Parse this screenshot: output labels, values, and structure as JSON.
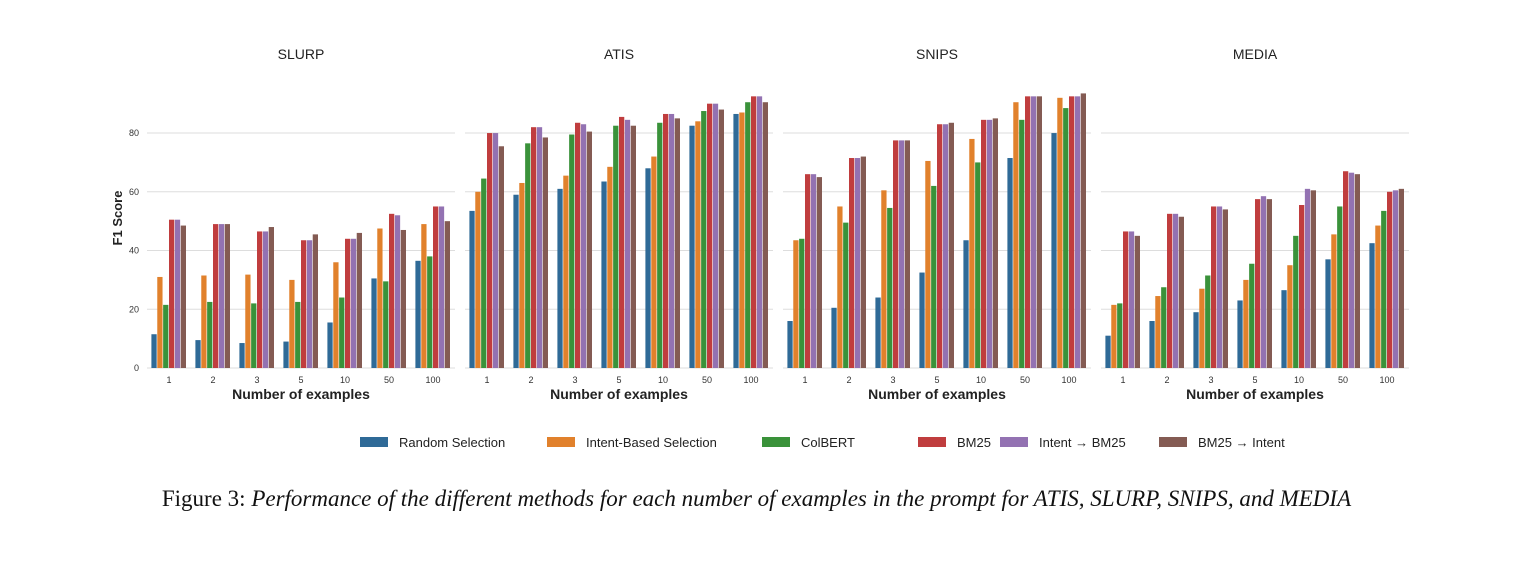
{
  "caption": {
    "label": "Figure 3:",
    "text": "Performance of the different methods for each number of examples in the prompt for ATIS, SLURP, SNIPS, and MEDIA"
  },
  "chart_data": {
    "type": "bar",
    "ylabel": "F1 Score",
    "xlabel": "Number of examples",
    "ylim": [
      0,
      95
    ],
    "yticks": [
      0,
      20,
      40,
      60,
      80
    ],
    "grid": true,
    "legend_position": "bottom",
    "categories": [
      "1",
      "2",
      "3",
      "5",
      "10",
      "50",
      "100"
    ],
    "series_names": [
      "Random Selection",
      "Intent-Based Selection",
      "ColBERT",
      "BM25",
      "Intent → BM25",
      "BM25 → Intent"
    ],
    "colors": [
      "#2f6a97",
      "#e1812c",
      "#3a923a",
      "#c03d3e",
      "#9372b2",
      "#845b53"
    ],
    "panels": [
      {
        "title": "SLURP",
        "values": [
          [
            11.5,
            9.5,
            8.5,
            9.0,
            15.5,
            30.5,
            36.5
          ],
          [
            31.0,
            31.5,
            31.8,
            30.0,
            36.0,
            47.5,
            49.0
          ],
          [
            21.5,
            22.5,
            22.0,
            22.5,
            24.0,
            29.5,
            38.0
          ],
          [
            50.5,
            49.0,
            46.5,
            43.5,
            44.0,
            52.5,
            55.0
          ],
          [
            50.5,
            49.0,
            46.5,
            43.5,
            44.0,
            52.0,
            55.0
          ],
          [
            48.5,
            49.0,
            48.0,
            45.5,
            46.0,
            47.0,
            50.0
          ]
        ]
      },
      {
        "title": "ATIS",
        "values": [
          [
            53.5,
            59.0,
            61.0,
            63.5,
            68.0,
            82.5,
            86.5
          ],
          [
            60.0,
            63.0,
            65.5,
            68.5,
            72.0,
            84.0,
            87.0
          ],
          [
            64.5,
            76.5,
            79.5,
            82.5,
            83.5,
            87.5,
            90.5
          ],
          [
            80.0,
            82.0,
            83.5,
            85.5,
            86.5,
            90.0,
            92.5
          ],
          [
            80.0,
            82.0,
            83.0,
            84.5,
            86.5,
            90.0,
            92.5
          ],
          [
            75.5,
            78.5,
            80.5,
            82.5,
            85.0,
            88.0,
            90.5
          ]
        ]
      },
      {
        "title": "SNIPS",
        "values": [
          [
            16.0,
            20.5,
            24.0,
            32.5,
            43.5,
            71.5,
            80.0
          ],
          [
            43.5,
            55.0,
            60.5,
            70.5,
            78.0,
            90.5,
            92.0
          ],
          [
            44.0,
            49.5,
            54.5,
            62.0,
            70.0,
            84.5,
            88.5
          ],
          [
            66.0,
            71.5,
            77.5,
            83.0,
            84.5,
            92.5,
            92.5
          ],
          [
            66.0,
            71.5,
            77.5,
            83.0,
            84.5,
            92.5,
            92.5
          ],
          [
            65.0,
            72.0,
            77.5,
            83.5,
            85.0,
            92.5,
            93.5
          ]
        ]
      },
      {
        "title": "MEDIA",
        "values": [
          [
            11.0,
            16.0,
            19.0,
            23.0,
            26.5,
            37.0,
            42.5
          ],
          [
            21.5,
            24.5,
            27.0,
            30.0,
            35.0,
            45.5,
            48.5
          ],
          [
            22.0,
            27.5,
            31.5,
            35.5,
            45.0,
            55.0,
            53.5
          ],
          [
            46.5,
            52.5,
            55.0,
            57.5,
            55.5,
            67.0,
            60.0
          ],
          [
            46.5,
            52.5,
            55.0,
            58.5,
            61.0,
            66.5,
            60.5
          ],
          [
            45.0,
            51.5,
            54.0,
            57.5,
            60.5,
            66.0,
            61.0
          ]
        ]
      }
    ]
  }
}
